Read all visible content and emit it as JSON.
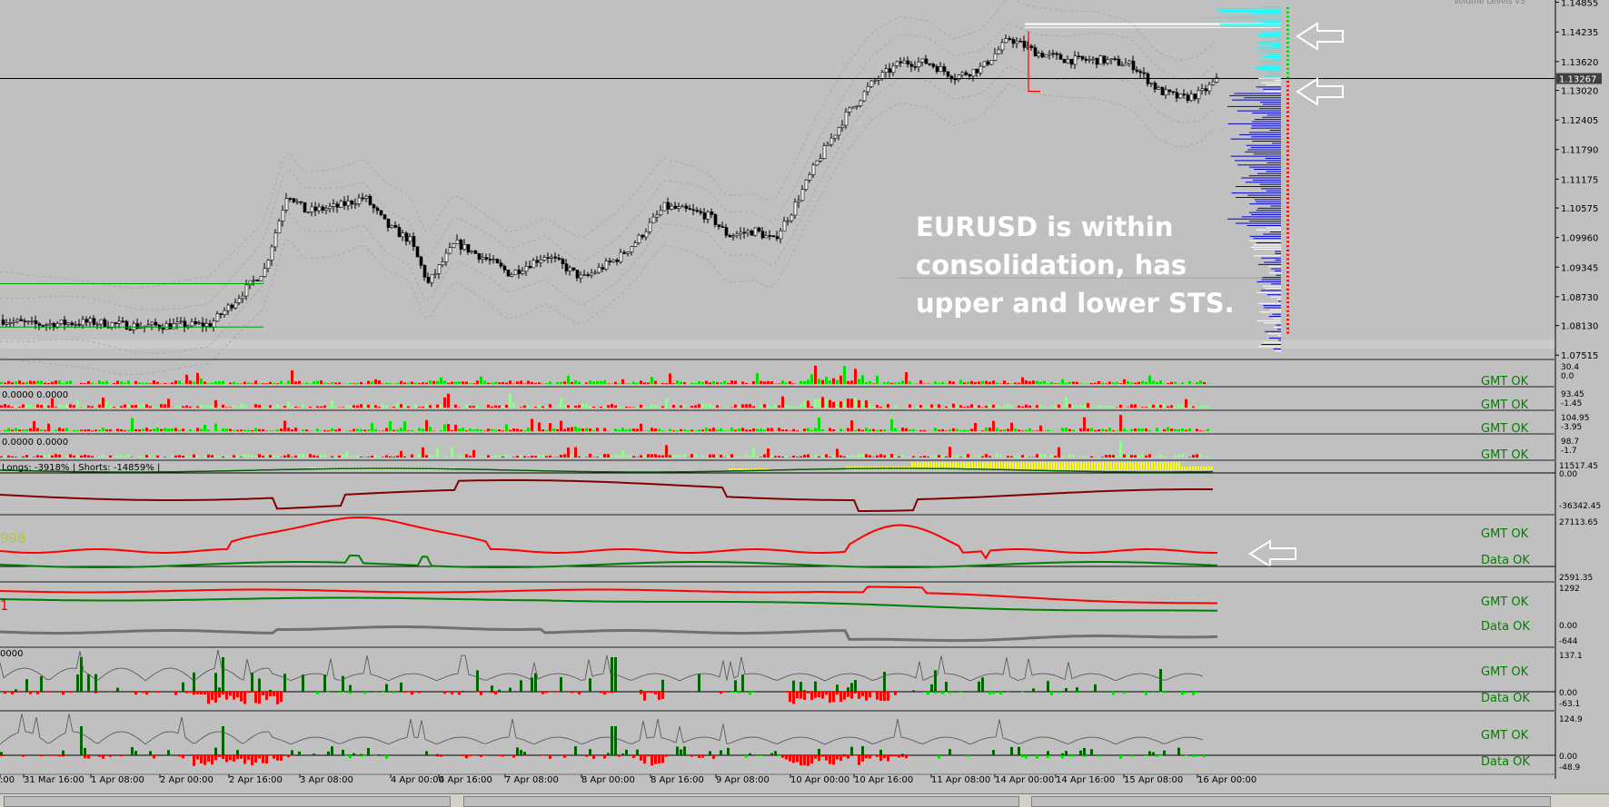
{
  "chart_data": {
    "type": "candlestick",
    "symbol": "EURUSD",
    "annotation": [
      "EURUSD is within",
      "consolidation, has",
      "upper and lower STS."
    ],
    "current_price": "1.13267",
    "price_ticks": [
      "1.14855",
      "1.14235",
      "1.13620",
      "1.13020",
      "1.12405",
      "1.11790",
      "1.11175",
      "1.10575",
      "1.09960",
      "1.09345",
      "1.08730",
      "1.08130",
      "1.07515"
    ],
    "ylim": [
      1.075,
      1.149
    ],
    "time_ticks": [
      ":00",
      "31 Mar 16:00",
      "1 Apr 08:00",
      "2 Apr 00:00",
      "2 Apr 16:00",
      "3 Apr 08:00",
      "4 Apr 00:00",
      "4 Apr 16:00",
      "7 Apr 08:00",
      "8 Apr 00:00",
      "8 Apr 16:00",
      "9 Apr 08:00",
      "10 Apr 00:00",
      "10 Apr 16:00",
      "11 Apr 08:00",
      "14 Apr 00:00",
      "14 Apr 16:00",
      "15 Apr 08:00",
      "16 Apr 00:00"
    ],
    "price_path": [
      [
        0,
        1.0825
      ],
      [
        35,
        1.0815
      ],
      [
        100,
        1.082
      ],
      [
        150,
        1.0812
      ],
      [
        230,
        1.0815
      ],
      [
        255,
        1.086
      ],
      [
        290,
        1.093
      ],
      [
        315,
        1.109
      ],
      [
        335,
        1.105
      ],
      [
        370,
        1.106
      ],
      [
        400,
        1.108
      ],
      [
        425,
        1.102
      ],
      [
        450,
        1.099
      ],
      [
        470,
        1.09
      ],
      [
        500,
        1.0985
      ],
      [
        540,
        1.0945
      ],
      [
        560,
        1.092
      ],
      [
        600,
        1.096
      ],
      [
        640,
        1.091
      ],
      [
        680,
        1.0955
      ],
      [
        700,
        1.099
      ],
      [
        730,
        1.106
      ],
      [
        760,
        1.105
      ],
      [
        780,
        1.104
      ],
      [
        800,
        1.1
      ],
      [
        830,
        1.101
      ],
      [
        850,
        1.099
      ],
      [
        870,
        1.105
      ],
      [
        900,
        1.116
      ],
      [
        930,
        1.125
      ],
      [
        960,
        1.132
      ],
      [
        990,
        1.136
      ],
      [
        1020,
        1.136
      ],
      [
        1050,
        1.133
      ],
      [
        1080,
        1.135
      ],
      [
        1110,
        1.141
      ],
      [
        1140,
        1.138
      ],
      [
        1175,
        1.1365
      ],
      [
        1210,
        1.1365
      ],
      [
        1245,
        1.1355
      ],
      [
        1275,
        1.13
      ],
      [
        1300,
        1.1285
      ],
      [
        1320,
        1.1295
      ],
      [
        1340,
        1.1325
      ]
    ],
    "subpanels": [
      {
        "name": "vol1",
        "labels": [
          "30.4",
          "0.0"
        ],
        "status": "GMT OK",
        "header": ""
      },
      {
        "name": "vol2",
        "labels": [
          "93.45",
          "-1.45"
        ],
        "status": "GMT OK",
        "header": "0.0000 0.0000"
      },
      {
        "name": "vol3",
        "labels": [
          "104.95",
          "-3.95"
        ],
        "status": "GMT OK",
        "header": ""
      },
      {
        "name": "vol4",
        "labels": [
          "98.7",
          "-1.7"
        ],
        "status": "GMT OK",
        "header": "0.0000 0.0000"
      },
      {
        "name": "sentiment",
        "labels": [
          "11517.45",
          "0.00",
          "-36342.45"
        ],
        "status": "",
        "header": "Longs: -3918% | Shorts: -14859% |"
      },
      {
        "name": "ind1",
        "labels": [
          "27113.65",
          "2591.35"
        ],
        "status": "GMT OK",
        "status2": "Data OK",
        "header": "998"
      },
      {
        "name": "ind2",
        "labels": [
          "1292",
          "0.00",
          "-644"
        ],
        "status": "GMT OK",
        "status2": "Data OK",
        "header": "1"
      },
      {
        "name": "hist1",
        "labels": [
          "137.1",
          "0.00",
          "-63.1"
        ],
        "status": "GMT OK",
        "status2": "Data OK",
        "header": "0000"
      },
      {
        "name": "hist2",
        "labels": [
          "124.9",
          "0.00",
          "-48.9"
        ],
        "status": "GMT OK",
        "status2": "Data OK",
        "header": ""
      }
    ],
    "top_right_label": "Volume Levels v3"
  },
  "colors": {
    "bg": "#c0c0c0",
    "candle": "#000000",
    "up_bar": "#00e000",
    "down_bar": "#ff0000",
    "lime": "#98f898",
    "sentiment_fill": "#ffff00",
    "dark_red": "#800000",
    "dark_green": "#006400",
    "profile_blue": "#0000d0",
    "profile_cyan": "#00ffff",
    "profile_white": "#ffffff",
    "status_green": "#008000"
  }
}
